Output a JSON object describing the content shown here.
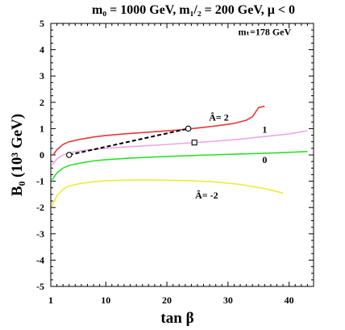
{
  "chart_data": {
    "type": "line",
    "title": "m₀ = 1000 GeV, m₁/₂ = 200 GeV, μ < 0",
    "xlabel": "tan β",
    "ylabel": "B₀ (10³ GeV)",
    "xlim": [
      1,
      44
    ],
    "ylim": [
      -5,
      5
    ],
    "x_ticks": [
      1,
      10,
      20,
      30,
      40
    ],
    "y_ticks": [
      -5,
      -4,
      -3,
      -2,
      -1,
      0,
      1,
      2,
      3,
      4,
      5
    ],
    "grid": false,
    "legend": "none",
    "annotations": [
      {
        "text": "mₜ=178 GeV",
        "x": 36,
        "y": 4.55
      },
      {
        "text": "Â= 2",
        "x": 28.5,
        "y": 1.3
      },
      {
        "text": "1",
        "x": 36,
        "y": 0.85
      },
      {
        "text": "0",
        "x": 36,
        "y": -0.3
      },
      {
        "text": "Â= -2",
        "x": 26.5,
        "y": -1.65
      }
    ],
    "series": [
      {
        "name": "Â= 2",
        "color": "#e8383a",
        "x": [
          1.4,
          2,
          3,
          4,
          6,
          8,
          10,
          13,
          16,
          19,
          22,
          25,
          28,
          31,
          33,
          34,
          35,
          36
        ],
        "y": [
          0.0,
          0.2,
          0.4,
          0.5,
          0.6,
          0.68,
          0.74,
          0.8,
          0.85,
          0.9,
          0.95,
          1.02,
          1.1,
          1.2,
          1.32,
          1.45,
          1.8,
          1.85
        ]
      },
      {
        "name": "1",
        "color": "#eba8e4",
        "x": [
          1.2,
          2,
          3,
          4,
          6,
          8,
          10,
          13,
          16,
          20,
          24,
          28,
          32,
          36,
          40,
          43
        ],
        "y": [
          -0.4,
          -0.15,
          0.0,
          0.08,
          0.16,
          0.21,
          0.25,
          0.3,
          0.34,
          0.4,
          0.46,
          0.52,
          0.6,
          0.7,
          0.8,
          0.92
        ]
      },
      {
        "name": "0",
        "color": "#2ee02e",
        "x": [
          1.2,
          2,
          3,
          4,
          6,
          8,
          10,
          14,
          18,
          22,
          26,
          30,
          34,
          38,
          43
        ],
        "y": [
          -0.95,
          -0.68,
          -0.5,
          -0.4,
          -0.3,
          -0.23,
          -0.18,
          -0.12,
          -0.08,
          -0.04,
          -0.01,
          0.02,
          0.05,
          0.08,
          0.13
        ]
      },
      {
        "name": "Â= -2",
        "color": "#ecec3a",
        "x": [
          1.2,
          2,
          3,
          4,
          6,
          8,
          10,
          13,
          16,
          20,
          24,
          28,
          32,
          36,
          39
        ],
        "y": [
          -1.95,
          -1.55,
          -1.3,
          -1.18,
          -1.08,
          -1.02,
          -0.98,
          -0.96,
          -0.95,
          -0.96,
          -0.98,
          -1.03,
          -1.12,
          -1.28,
          -1.45
        ]
      },
      {
        "name": "dashed",
        "color": "#000000",
        "dashed": true,
        "x": [
          4,
          23.5
        ],
        "y": [
          0.0,
          1.0
        ]
      }
    ],
    "markers": [
      {
        "shape": "circle",
        "x": 4,
        "y": 0.0
      },
      {
        "shape": "circle",
        "x": 23.5,
        "y": 1.0
      },
      {
        "shape": "square",
        "x": 24.5,
        "y": 0.47
      }
    ]
  }
}
